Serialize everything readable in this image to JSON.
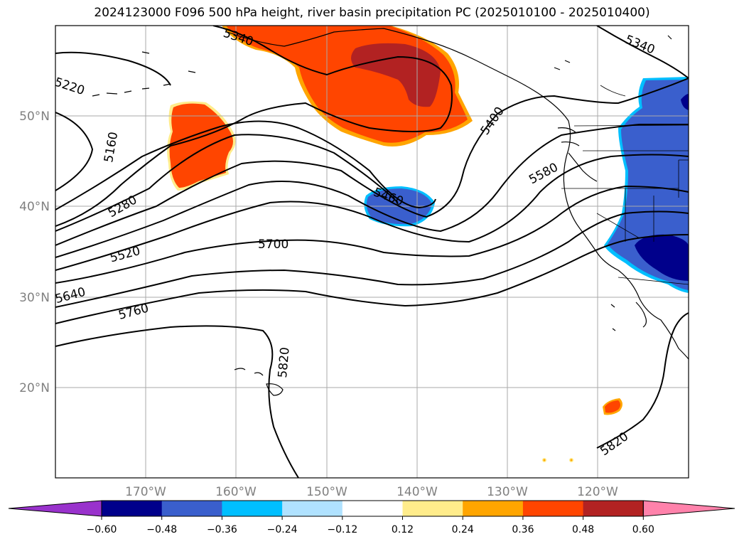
{
  "title": "2024123000 F096 500 hPa height, river basin precipitation PC (2025010100 - 2025010400)",
  "map": {
    "lat_labels": [
      "50°N",
      "40°N",
      "30°N",
      "20°N"
    ],
    "lon_labels": [
      "170°W",
      "160°W",
      "150°W",
      "140°W",
      "130°W",
      "120°W"
    ],
    "contour_labels": [
      "5340",
      "5220",
      "5160",
      "5280",
      "5520",
      "5640",
      "5760",
      "5700",
      "5460",
      "5400",
      "5580",
      "5340",
      "5820",
      "5820"
    ]
  },
  "colorbar": {
    "ticks": [
      "−0.60",
      "−0.48",
      "−0.36",
      "−0.24",
      "−0.12",
      "0.12",
      "0.24",
      "0.36",
      "0.48",
      "0.60"
    ],
    "colors": [
      "#9932cc",
      "#00008b",
      "#3a5fcd",
      "#00bfff",
      "#b0e2ff",
      "#ffffff",
      "#ffec8b",
      "#ffa500",
      "#ff4500",
      "#b22222",
      "#ff82ab"
    ]
  }
}
